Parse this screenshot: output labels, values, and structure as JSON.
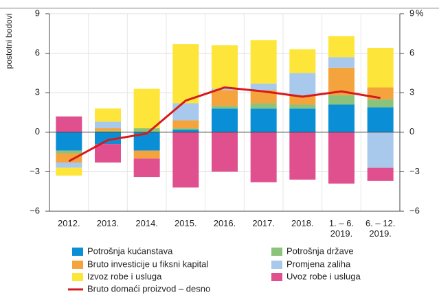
{
  "chart_data": {
    "type": "bar",
    "stacked": true,
    "y_label": "postotni bodovi",
    "y2_label": "%",
    "categories": [
      "2012.",
      "2013.",
      "2014.",
      "2015.",
      "2016.",
      "2017.",
      "2018.",
      "1. – 6. 2019.",
      "6. – 12. 2019."
    ],
    "ylim": [
      -6,
      9
    ],
    "yticks": [
      {
        "value": -6,
        "label": "−6"
      },
      {
        "value": -3,
        "label": "−3"
      },
      0,
      3,
      6,
      9
    ],
    "y2lim": [
      -6,
      9
    ],
    "y2ticks": [
      {
        "value": -6,
        "label": "−6"
      },
      {
        "value": -3,
        "label": "−3"
      },
      0,
      3,
      6,
      9
    ],
    "series": [
      {
        "name": "Potrošnja kućanstava",
        "color": "#0a8fd6",
        "values": [
          -1.4,
          -0.9,
          -1.4,
          0.2,
          1.8,
          1.8,
          1.8,
          2.1,
          1.9
        ]
      },
      {
        "name": "Potrošnja države",
        "color": "#8cc37a",
        "values": [
          -0.2,
          0.1,
          0.3,
          0.1,
          0.2,
          0.4,
          0.3,
          0.7,
          0.6
        ]
      },
      {
        "name": "Bruto investicije u fiksni kapital",
        "color": "#f5a33c",
        "values": [
          -0.7,
          0.2,
          -0.6,
          0.6,
          1.2,
          1.0,
          0.7,
          2.1,
          0.9
        ]
      },
      {
        "name": "Promjena zaliha",
        "color": "#a8c8ec",
        "values": [
          -0.4,
          0.5,
          0,
          1.3,
          0.1,
          0.5,
          1.7,
          0.8,
          -2.7
        ]
      },
      {
        "name": "Izvoz robe i usluga",
        "color": "#fde53a",
        "values": [
          -0.6,
          1.0,
          3.0,
          4.5,
          3.3,
          3.3,
          1.8,
          1.6,
          3.0
        ]
      },
      {
        "name": "Uvoz robe i usluga",
        "color": "#e0508f",
        "values": [
          1.2,
          -1.4,
          -1.4,
          -4.2,
          -3.0,
          -3.8,
          -3.6,
          -3.9,
          -1.0
        ]
      },
      {
        "name": "Bruto domaći proizvod – desno",
        "type": "line",
        "axis": "y2",
        "color": "#d7191c",
        "values": [
          -2.2,
          -0.6,
          -0.1,
          2.4,
          3.4,
          3.1,
          2.7,
          3.1,
          2.6
        ]
      }
    ]
  }
}
